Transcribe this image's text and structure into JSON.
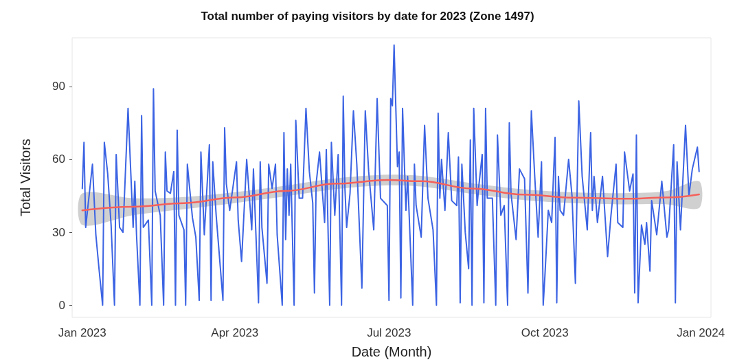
{
  "chart_data": {
    "type": "line",
    "title": "Total number of paying visitors by date for 2023 (Zone 1497)",
    "xlabel": "Date (Month)",
    "ylabel": "Total Visitors",
    "x": [
      "2023-01-01",
      "2023-01-02",
      "2023-01-03",
      "2023-01-07",
      "2023-01-09",
      "2023-01-11",
      "2023-01-13",
      "2023-01-14",
      "2023-01-16",
      "2023-01-18",
      "2023-01-20",
      "2023-01-21",
      "2023-01-23",
      "2023-01-25",
      "2023-01-28",
      "2023-01-31",
      "2023-02-01",
      "2023-02-02",
      "2023-02-04",
      "2023-02-05",
      "2023-02-06",
      "2023-02-09",
      "2023-02-11",
      "2023-02-12",
      "2023-02-13",
      "2023-02-16",
      "2023-02-18",
      "2023-02-19",
      "2023-02-20",
      "2023-02-22",
      "2023-02-24",
      "2023-02-25",
      "2023-02-26",
      "2023-02-27",
      "2023-03-02",
      "2023-03-03",
      "2023-03-04",
      "2023-03-07",
      "2023-03-09",
      "2023-03-11",
      "2023-03-12",
      "2023-03-14",
      "2023-03-17",
      "2023-03-18",
      "2023-03-19",
      "2023-03-21",
      "2023-03-25",
      "2023-03-26",
      "2023-03-27",
      "2023-03-29",
      "2023-04-02",
      "2023-04-03",
      "2023-04-05",
      "2023-04-08",
      "2023-04-11",
      "2023-04-12",
      "2023-04-15",
      "2023-04-16",
      "2023-04-17",
      "2023-04-20",
      "2023-04-21",
      "2023-04-23",
      "2023-04-25",
      "2023-04-26",
      "2023-04-29",
      "2023-04-30",
      "2023-05-01",
      "2023-05-02",
      "2023-05-03",
      "2023-05-04",
      "2023-05-06",
      "2023-05-07",
      "2023-05-09",
      "2023-05-11",
      "2023-05-13",
      "2023-05-15",
      "2023-05-17",
      "2023-05-18",
      "2023-05-19",
      "2023-05-21",
      "2023-05-24",
      "2023-05-25",
      "2023-05-27",
      "2023-05-28",
      "2023-05-30",
      "2023-06-01",
      "2023-06-03",
      "2023-06-04",
      "2023-06-05",
      "2023-06-06",
      "2023-06-08",
      "2023-06-10",
      "2023-06-12",
      "2023-06-15",
      "2023-06-17",
      "2023-06-19",
      "2023-06-22",
      "2023-06-24",
      "2023-06-26",
      "2023-06-30",
      "2023-07-01",
      "2023-07-02",
      "2023-07-03",
      "2023-07-04",
      "2023-07-06",
      "2023-07-07",
      "2023-07-08",
      "2023-07-09",
      "2023-07-11",
      "2023-07-12",
      "2023-07-15",
      "2023-07-16",
      "2023-07-17",
      "2023-07-20",
      "2023-07-22",
      "2023-07-24",
      "2023-07-27",
      "2023-07-29",
      "2023-07-30",
      "2023-07-31",
      "2023-08-01",
      "2023-08-03",
      "2023-08-05",
      "2023-08-07",
      "2023-08-10",
      "2023-08-11",
      "2023-08-12",
      "2023-08-13",
      "2023-08-15",
      "2023-08-17",
      "2023-08-18",
      "2023-08-19",
      "2023-08-20",
      "2023-08-22",
      "2023-08-23",
      "2023-08-25",
      "2023-08-26",
      "2023-08-27",
      "2023-08-28",
      "2023-08-31",
      "2023-09-02",
      "2023-09-03",
      "2023-09-05",
      "2023-09-07",
      "2023-09-09",
      "2023-09-10",
      "2023-09-11",
      "2023-09-14",
      "2023-09-16",
      "2023-09-19",
      "2023-09-21",
      "2023-09-23",
      "2023-09-25",
      "2023-09-27",
      "2023-09-29",
      "2023-09-30",
      "2023-10-01",
      "2023-10-03",
      "2023-10-05",
      "2023-10-06",
      "2023-10-07",
      "2023-10-08",
      "2023-10-09",
      "2023-10-10",
      "2023-10-12",
      "2023-10-15",
      "2023-10-17",
      "2023-10-19",
      "2023-10-21",
      "2023-10-23",
      "2023-10-26",
      "2023-10-28",
      "2023-10-29",
      "2023-10-30",
      "2023-11-01",
      "2023-11-04",
      "2023-11-07",
      "2023-11-09",
      "2023-11-12",
      "2023-11-13",
      "2023-11-16",
      "2023-11-17",
      "2023-11-20",
      "2023-11-22",
      "2023-11-23",
      "2023-11-24",
      "2023-11-25",
      "2023-11-27",
      "2023-11-29",
      "2023-11-30",
      "2023-12-02",
      "2023-12-03",
      "2023-12-06",
      "2023-12-09",
      "2023-12-12",
      "2023-12-13",
      "2023-12-16",
      "2023-12-17",
      "2023-12-18",
      "2023-12-20",
      "2023-12-23",
      "2023-12-25",
      "2023-12-27",
      "2023-12-30",
      "2023-12-31"
    ],
    "series": [
      {
        "color": "#3b63e3",
        "values": [
          48,
          67,
          32,
          58,
          29,
          14,
          0,
          67,
          54,
          33,
          0,
          62,
          32,
          30,
          81,
          32,
          51,
          29,
          0,
          78,
          32,
          35,
          0,
          89,
          47,
          37,
          0,
          63,
          47,
          46,
          55,
          0,
          72,
          37,
          31,
          0,
          58,
          36,
          28,
          2,
          63,
          29,
          66,
          2,
          59,
          37,
          2,
          73,
          50,
          39,
          59,
          35,
          18,
          60,
          31,
          56,
          1,
          59,
          32,
          9,
          58,
          48,
          58,
          29,
          0,
          71,
          27,
          56,
          37,
          58,
          0,
          76,
          44,
          44,
          81,
          55,
          42,
          5,
          50,
          63,
          34,
          64,
          0,
          67,
          37,
          62,
          0,
          86,
          48,
          32,
          46,
          80,
          58,
          7,
          80,
          55,
          31,
          85,
          44,
          41,
          2,
          85,
          82,
          107,
          57,
          63,
          3,
          81,
          39,
          53,
          0,
          58,
          41,
          28,
          74,
          44,
          31,
          0,
          79,
          44,
          60,
          39,
          71,
          43,
          41,
          61,
          1,
          58,
          30,
          15,
          68,
          0,
          81,
          41,
          49,
          62,
          1,
          81,
          44,
          44,
          0,
          70,
          37,
          41,
          0,
          75,
          46,
          27,
          56,
          52,
          5,
          80,
          53,
          28,
          59,
          0,
          12,
          39,
          34,
          52,
          69,
          1,
          53,
          39,
          37,
          60,
          45,
          9,
          84,
          53,
          31,
          71,
          39,
          53,
          34,
          53,
          20,
          37,
          58,
          34,
          32,
          63,
          47,
          54,
          5,
          70,
          1,
          33,
          25,
          34,
          14,
          43,
          29,
          51,
          28,
          31,
          66,
          1,
          59,
          31,
          74,
          45,
          56,
          65,
          55
        ]
      },
      {
        "type": "line",
        "color": "#f5605a",
        "x": [
          "2023-01-01",
          "2023-01-31",
          "2023-03-02",
          "2023-04-01",
          "2023-05-01",
          "2023-05-31",
          "2023-06-30",
          "2023-07-20",
          "2023-08-19",
          "2023-09-18",
          "2023-10-18",
          "2023-11-17",
          "2023-12-12",
          "2023-12-31"
        ],
        "values": [
          39,
          40.5,
          42,
          44.3,
          47,
          50,
          51.5,
          51,
          48,
          45.5,
          44.2,
          43.8,
          44.3,
          45.6
        ],
        "lower": [
          33,
          37,
          39.5,
          42,
          44.8,
          47.8,
          49.3,
          48.8,
          45.8,
          43.3,
          42,
          41.5,
          41.5,
          40
        ],
        "upper": [
          46,
          44,
          44.5,
          46.5,
          49.2,
          52.2,
          53.7,
          53.2,
          50.2,
          47.7,
          46.4,
          46.1,
          47,
          51
        ]
      }
    ],
    "xlim": [
      "2022-12-26",
      "2024-01-07"
    ],
    "xticks": [
      {
        "value": "2023-01-01",
        "label": "Jan 2023"
      },
      {
        "value": "2023-04-01",
        "label": "Apr 2023"
      },
      {
        "value": "2023-07-01",
        "label": "Jul 2023"
      },
      {
        "value": "2023-10-01",
        "label": "Oct 2023"
      },
      {
        "value": "2024-01-01",
        "label": "Jan 2024"
      }
    ],
    "ylim": [
      -5,
      110
    ],
    "yticks": [
      0,
      30,
      60,
      90
    ],
    "grid": false,
    "marker": "none",
    "line_style": "solid"
  }
}
